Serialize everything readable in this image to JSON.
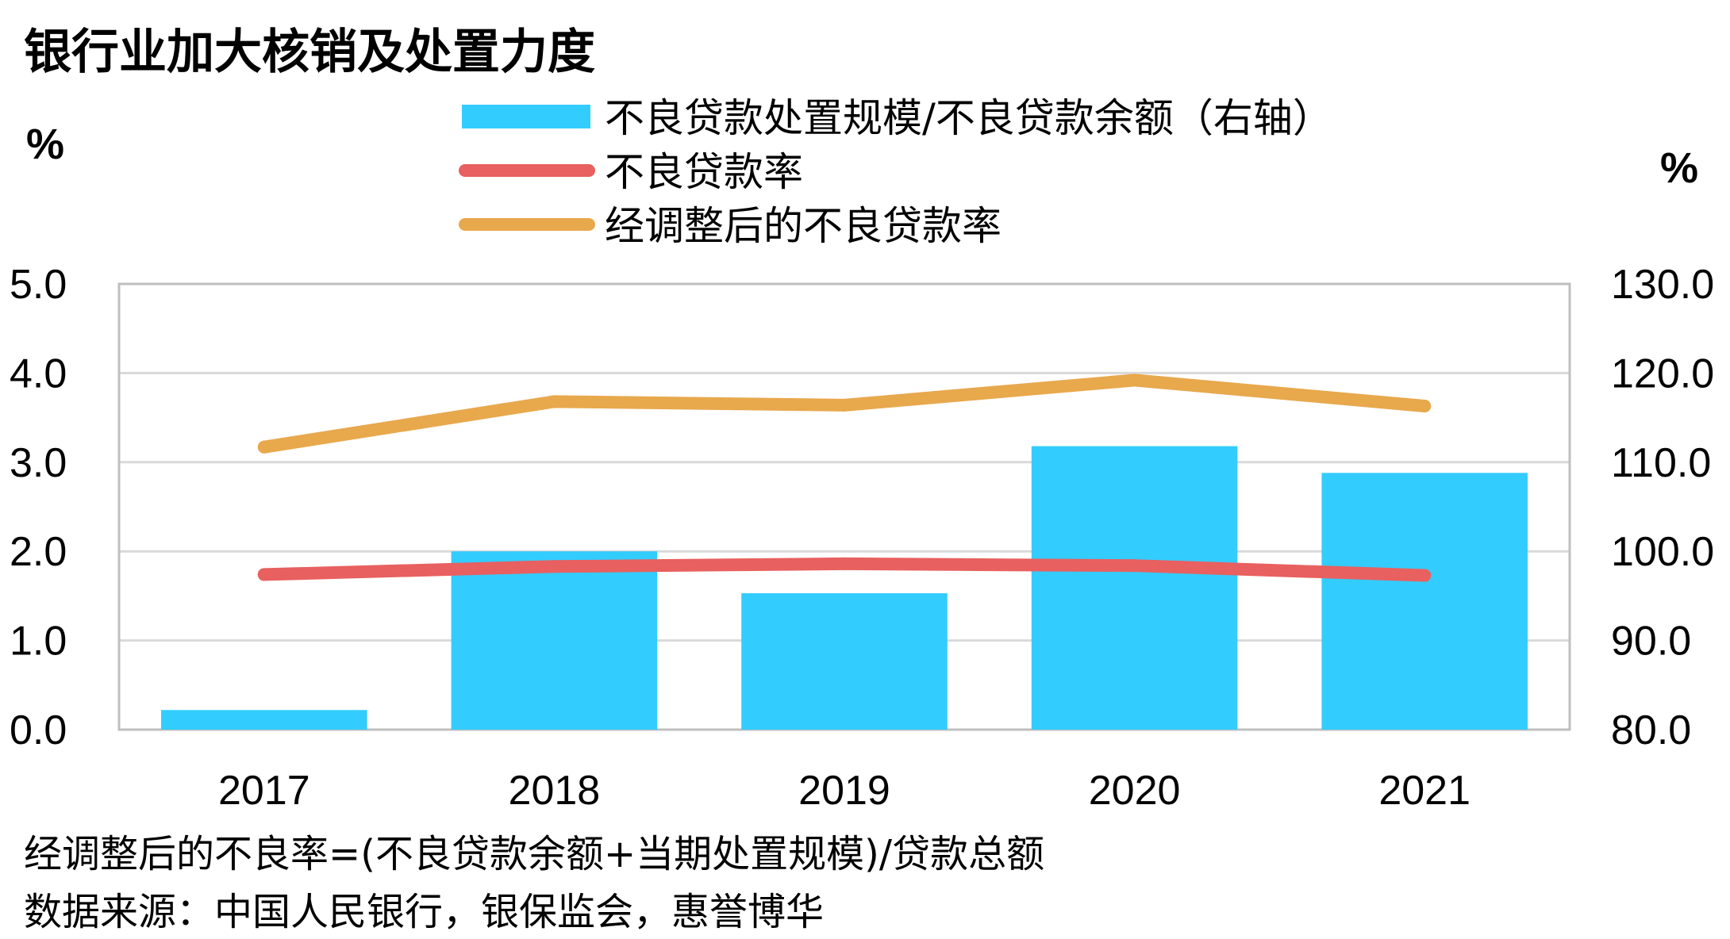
{
  "chart_data": {
    "type": "bar",
    "title": "银行业加大核销及处置力度",
    "left_unit": "%",
    "right_unit": "%",
    "categories": [
      "2017",
      "2018",
      "2019",
      "2020",
      "2021"
    ],
    "left_axis": {
      "ylim": [
        0,
        5
      ],
      "ticks": [
        "0.0",
        "1.0",
        "2.0",
        "3.0",
        "4.0",
        "5.0"
      ]
    },
    "right_axis": {
      "ylim": [
        80,
        130
      ],
      "ticks": [
        "80.0",
        "90.0",
        "100.0",
        "110.0",
        "120.0",
        "130.0"
      ]
    },
    "series": [
      {
        "name": "不良贷款处置规模/不良贷款余额（右轴）",
        "kind": "bar",
        "axis": "right",
        "color": "#33CCFF",
        "values": [
          82.2,
          100.0,
          95.3,
          111.8,
          108.8
        ]
      },
      {
        "name": "不良贷款率",
        "kind": "line",
        "axis": "left",
        "color": "#E8605F",
        "values": [
          1.74,
          1.83,
          1.86,
          1.84,
          1.73
        ]
      },
      {
        "name": "经调整后的不良贷款率",
        "kind": "line",
        "axis": "left",
        "color": "#E8A84C",
        "values": [
          3.17,
          3.68,
          3.64,
          3.92,
          3.63
        ]
      }
    ],
    "grid": true,
    "legend_position": "top"
  },
  "footnotes": {
    "formula": "经调整后的不良率=(不良贷款余额+当期处置规模)/贷款总额",
    "source": "数据来源：中国人民银行，银保监会，惠誉博华"
  },
  "colors": {
    "gridline": "#D9D9D9",
    "plot_border": "#BFBFBF"
  }
}
